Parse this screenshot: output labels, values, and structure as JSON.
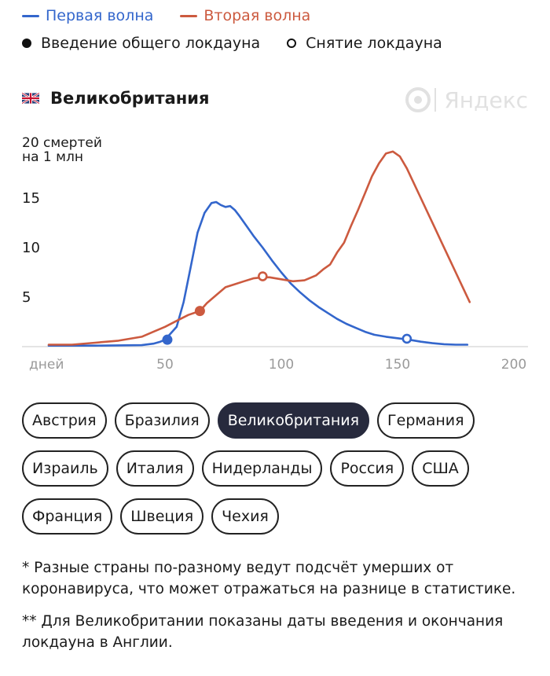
{
  "legend": {
    "first_wave": "Первая волна",
    "second_wave": "Вторая волна",
    "lockdown_start": "Введение общего локдауна",
    "lockdown_end": "Снятие локдауна"
  },
  "colors": {
    "first_wave": "#3366cc",
    "second_wave": "#cc5a3f",
    "accent_dark": "#272a3d"
  },
  "country": {
    "name": "Великобритания",
    "flag_icon": "uk-flag-icon"
  },
  "watermark": "Яндекс",
  "chart_data": {
    "type": "line",
    "ylabel": "20 смертей на 1 млн",
    "ylabel_lines": [
      "20 смертей",
      "на 1 млн"
    ],
    "xlabel": "дней",
    "xlim": [
      0,
      200
    ],
    "ylim": [
      0,
      20
    ],
    "xticks": [
      50,
      100,
      150,
      200
    ],
    "yticks": [
      5,
      10,
      15
    ],
    "grid": false,
    "legend_position": "top",
    "series": [
      {
        "name": "Первая волна",
        "color": "#3366cc",
        "points": [
          [
            0,
            0.1
          ],
          [
            20,
            0.1
          ],
          [
            40,
            0.15
          ],
          [
            45,
            0.3
          ],
          [
            48,
            0.5
          ],
          [
            50,
            0.7
          ],
          [
            55,
            2
          ],
          [
            58,
            4.5
          ],
          [
            61,
            8
          ],
          [
            64,
            11.5
          ],
          [
            67,
            13.5
          ],
          [
            70,
            14.5
          ],
          [
            72,
            14.6
          ],
          [
            74,
            14.3
          ],
          [
            76,
            14.1
          ],
          [
            78,
            14.2
          ],
          [
            80,
            13.8
          ],
          [
            82,
            13.2
          ],
          [
            85,
            12.2
          ],
          [
            88,
            11.2
          ],
          [
            92,
            10
          ],
          [
            96,
            8.7
          ],
          [
            100,
            7.5
          ],
          [
            104,
            6.4
          ],
          [
            108,
            5.5
          ],
          [
            112,
            4.7
          ],
          [
            116,
            4
          ],
          [
            120,
            3.4
          ],
          [
            124,
            2.8
          ],
          [
            128,
            2.3
          ],
          [
            132,
            1.9
          ],
          [
            136,
            1.5
          ],
          [
            140,
            1.2
          ],
          [
            145,
            1
          ],
          [
            150,
            0.85
          ],
          [
            155,
            0.7
          ],
          [
            160,
            0.5
          ],
          [
            165,
            0.35
          ],
          [
            170,
            0.25
          ],
          [
            175,
            0.2
          ],
          [
            180,
            0.2
          ]
        ]
      },
      {
        "name": "Вторая волна",
        "color": "#cc5a3f",
        "points": [
          [
            0,
            0.2
          ],
          [
            10,
            0.2
          ],
          [
            20,
            0.4
          ],
          [
            30,
            0.6
          ],
          [
            40,
            1
          ],
          [
            45,
            1.5
          ],
          [
            50,
            2
          ],
          [
            55,
            2.6
          ],
          [
            60,
            3.2
          ],
          [
            65,
            3.6
          ],
          [
            68,
            4.4
          ],
          [
            72,
            5.2
          ],
          [
            76,
            6
          ],
          [
            80,
            6.3
          ],
          [
            84,
            6.6
          ],
          [
            88,
            6.9
          ],
          [
            92,
            7
          ],
          [
            95,
            7
          ],
          [
            100,
            6.8
          ],
          [
            105,
            6.6
          ],
          [
            110,
            6.7
          ],
          [
            115,
            7.2
          ],
          [
            118,
            7.8
          ],
          [
            121,
            8.3
          ],
          [
            124,
            9.5
          ],
          [
            127,
            10.5
          ],
          [
            130,
            12.2
          ],
          [
            133,
            13.8
          ],
          [
            136,
            15.5
          ],
          [
            139,
            17.2
          ],
          [
            142,
            18.5
          ],
          [
            145,
            19.5
          ],
          [
            148,
            19.7
          ],
          [
            151,
            19.2
          ],
          [
            154,
            18
          ],
          [
            157,
            16.5
          ],
          [
            160,
            15
          ],
          [
            163,
            13.5
          ],
          [
            166,
            12
          ],
          [
            169,
            10.5
          ],
          [
            172,
            9
          ],
          [
            175,
            7.5
          ],
          [
            178,
            6
          ],
          [
            181,
            4.5
          ]
        ]
      }
    ],
    "markers": [
      {
        "series": "Первая волна",
        "kind": "lockdown_start",
        "x": 51,
        "y": 0.7
      },
      {
        "series": "Вторая волна",
        "kind": "lockdown_start",
        "x": 65,
        "y": 3.6
      },
      {
        "series": "Вторая волна",
        "kind": "lockdown_end",
        "x": 92,
        "y": 7.1
      },
      {
        "series": "Первая волна",
        "kind": "lockdown_end",
        "x": 154,
        "y": 0.8
      }
    ]
  },
  "countries": [
    [
      "Австрия",
      "Бразилия",
      "Великобритания",
      "Германия"
    ],
    [
      "Израиль",
      "Италия",
      "Нидерланды",
      "Россия",
      "США"
    ],
    [
      "Франция",
      "Швеция",
      "Чехия"
    ]
  ],
  "selected_country": "Великобритания",
  "notes": [
    "* Разные страны по-разному ведут подсчёт умерших от коронавируса, что может отражаться на разнице в статистике.",
    "** Для Великобритании показаны даты введения и окончания локдауна в Англии."
  ]
}
